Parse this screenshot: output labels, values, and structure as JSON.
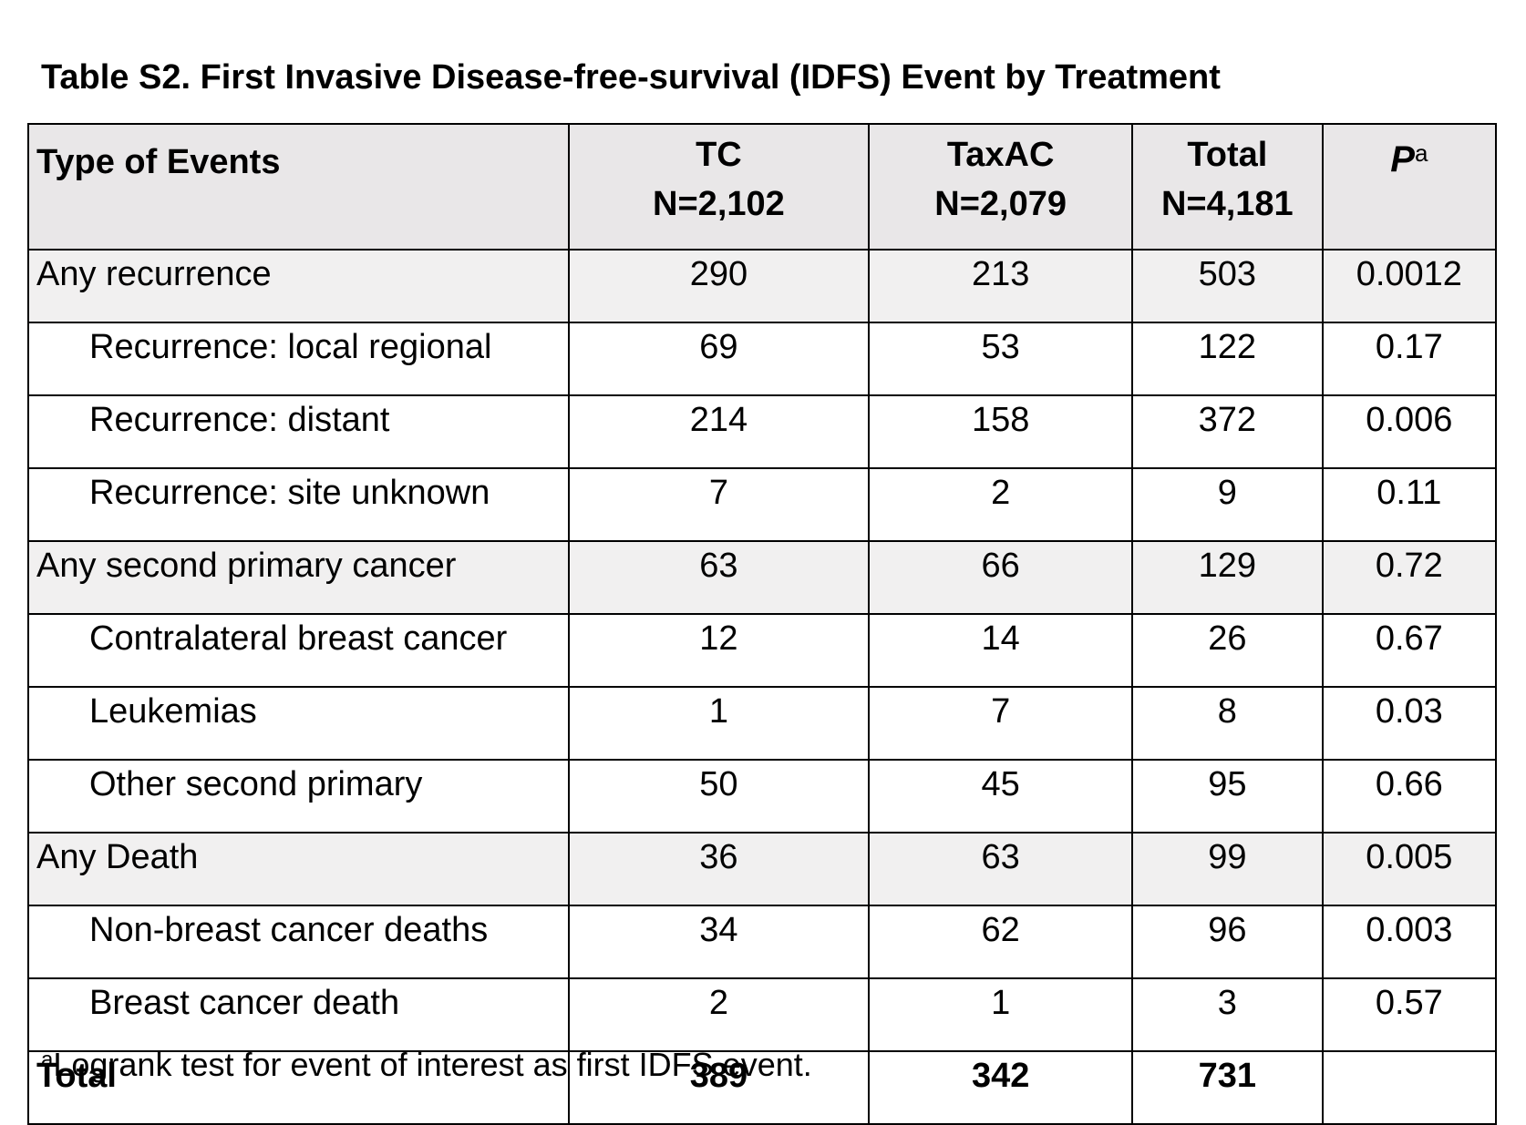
{
  "title": "Table S2.  First Invasive Disease-free-survival (IDFS) Event by Treatment",
  "table": {
    "headers": {
      "type": "Type of Events",
      "tc_name": "TC",
      "tc_n": "N=2,102",
      "taxac_name": "TaxAC",
      "taxac_n": "N=2,079",
      "total_name": "Total",
      "total_n": "N=4,181",
      "p_letter": "P",
      "p_sup": "a"
    },
    "rows": [
      {
        "label": "Any recurrence",
        "tc": "290",
        "taxac": "213",
        "total": "503",
        "p": "0.0012"
      },
      {
        "label": "Recurrence: local regional",
        "tc": "69",
        "taxac": "53",
        "total": "122",
        "p": "0.17"
      },
      {
        "label": "Recurrence: distant",
        "tc": "214",
        "taxac": "158",
        "total": "372",
        "p": "0.006"
      },
      {
        "label": "Recurrence: site unknown",
        "tc": "7",
        "taxac": "2",
        "total": "9",
        "p": "0.11"
      },
      {
        "label": "Any second primary cancer",
        "tc": "63",
        "taxac": "66",
        "total": "129",
        "p": "0.72"
      },
      {
        "label": "Contralateral breast cancer",
        "tc": "12",
        "taxac": "14",
        "total": "26",
        "p": "0.67"
      },
      {
        "label": "Leukemias",
        "tc": "1",
        "taxac": "7",
        "total": "8",
        "p": "0.03"
      },
      {
        "label": "Other second primary",
        "tc": "50",
        "taxac": "45",
        "total": "95",
        "p": "0.66"
      },
      {
        "label": "Any Death",
        "tc": "36",
        "taxac": "63",
        "total": "99",
        "p": "0.005"
      },
      {
        "label": "Non-breast cancer deaths",
        "tc": "34",
        "taxac": "62",
        "total": "96",
        "p": "0.003"
      },
      {
        "label": "Breast cancer death",
        "tc": "2",
        "taxac": "1",
        "total": "3",
        "p": "0.57"
      }
    ],
    "total_row": {
      "label": "Total",
      "tc": "389",
      "taxac": "342",
      "total": "731",
      "p": ""
    }
  },
  "footnote": {
    "sup": "a",
    "text": "Logrank test for event of interest as first IDFS event."
  },
  "colors": {
    "header_bg": "#e9e7e8",
    "group_row_bg": "#f1f0f0",
    "border": "#000000"
  }
}
